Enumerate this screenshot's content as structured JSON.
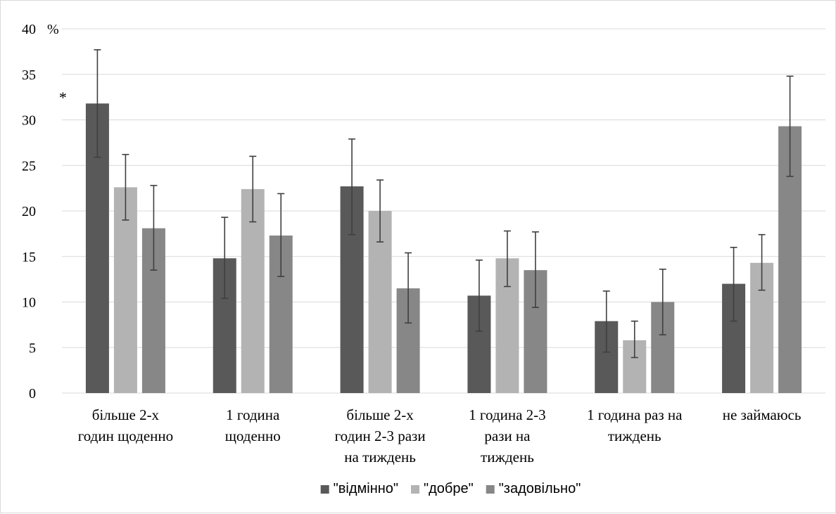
{
  "chart_data": {
    "type": "bar",
    "title": "",
    "xlabel": "",
    "ylabel": "",
    "y_unit": "%",
    "ylim": [
      0,
      40
    ],
    "yticks": [
      0,
      5,
      10,
      15,
      20,
      25,
      30,
      35,
      40
    ],
    "grid": true,
    "legend_position": "bottom",
    "categories": [
      [
        "більше 2-х",
        "годин щоденно"
      ],
      [
        "1 година",
        "щоденно"
      ],
      [
        "більше 2-х",
        "годин 2-3 рази",
        "на тиждень"
      ],
      [
        "1 година 2-3",
        "рази на",
        "тиждень"
      ],
      [
        "1 година раз на",
        "тиждень"
      ],
      [
        "не займаюсь"
      ]
    ],
    "series": [
      {
        "name": "\"відмінно\"",
        "color": "#595959",
        "values": [
          31.8,
          14.8,
          22.7,
          10.7,
          7.9,
          12.0
        ],
        "error": [
          [
            25.9,
            37.7
          ],
          [
            10.4,
            19.3
          ],
          [
            17.4,
            27.9
          ],
          [
            6.8,
            14.6
          ],
          [
            4.5,
            11.2
          ],
          [
            7.9,
            16.0
          ]
        ]
      },
      {
        "name": "\"добре\"",
        "color": "#b3b3b3",
        "values": [
          22.6,
          22.4,
          20.0,
          14.8,
          5.8,
          14.3
        ],
        "error": [
          [
            19.0,
            26.2
          ],
          [
            18.8,
            26.0
          ],
          [
            16.6,
            23.4
          ],
          [
            11.7,
            17.8
          ],
          [
            3.9,
            7.9
          ],
          [
            11.3,
            17.4
          ]
        ]
      },
      {
        "name": "\"задовільно\"",
        "color": "#878787",
        "values": [
          18.1,
          17.3,
          11.5,
          13.5,
          10.0,
          29.3
        ],
        "error": [
          [
            13.5,
            22.8
          ],
          [
            12.8,
            21.9
          ],
          [
            7.7,
            15.4
          ],
          [
            9.4,
            17.7
          ],
          [
            6.4,
            13.6
          ],
          [
            23.8,
            34.8
          ]
        ]
      }
    ],
    "annotations": [
      {
        "text": "*",
        "category_index": 0,
        "series_index": 0
      }
    ]
  }
}
